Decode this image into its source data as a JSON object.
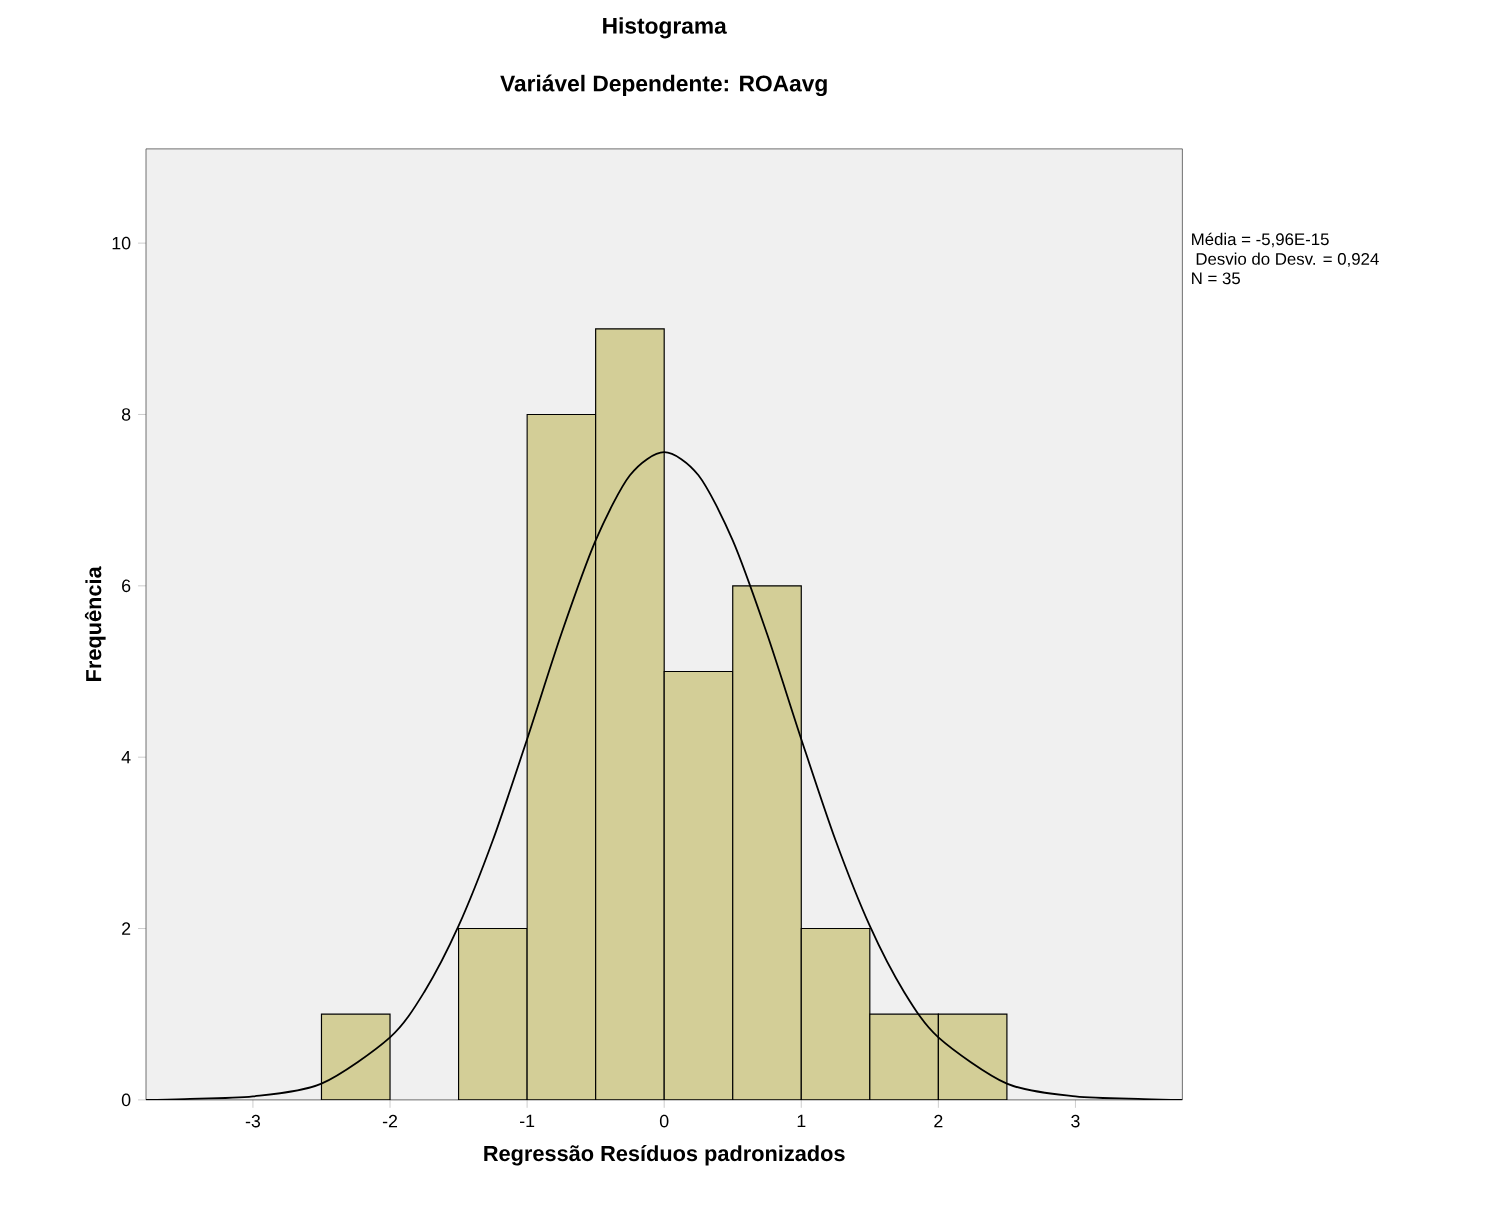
{
  "chart_data": {
    "type": "histogram",
    "title": "Histograma",
    "subtitle": "Variável Dependente: ROAavg",
    "xlabel": "Regressão Resíduos padronizados",
    "ylabel": "Frequência",
    "bins": [
      -2.5,
      -2,
      -1.5,
      -1,
      -0.5,
      0,
      0.5,
      1,
      1.5,
      2,
      2.5
    ],
    "values": [
      1,
      0,
      2,
      8,
      9,
      5,
      6,
      2,
      1,
      1
    ],
    "color": "#d3ce97",
    "series": [
      {
        "type": "line",
        "color": "#000000",
        "x": [
          -3.78,
          -3.5,
          -3,
          -2.5,
          -2,
          -1.75,
          -1.5,
          -1.25,
          -1,
          -0.75,
          -0.5,
          -0.25,
          0,
          0.25,
          0.5,
          0.75,
          1,
          1.25,
          1.5,
          1.75,
          2,
          2.5,
          3,
          3.5,
          3.78
        ],
        "values": [
          0,
          0.01,
          0.04,
          0.19,
          0.73,
          1.26,
          2.03,
          3.03,
          4.21,
          5.44,
          6.53,
          7.29,
          7.56,
          7.29,
          6.53,
          5.44,
          4.21,
          3.03,
          2.03,
          1.26,
          0.73,
          0.19,
          0.04,
          0.01,
          0
        ]
      }
    ],
    "xlim": [
      -3.78,
      3.78
    ],
    "ylim": [
      0,
      11.1
    ],
    "xticks": [
      -3,
      -2,
      -1,
      0,
      1,
      2,
      3
    ],
    "yticks": [
      0,
      2,
      4,
      6,
      8,
      10
    ],
    "grid": false,
    "annotations": [
      "Média = -5,96E-15",
      " Desvio do Desv. = 0,924",
      "N = 35"
    ]
  }
}
